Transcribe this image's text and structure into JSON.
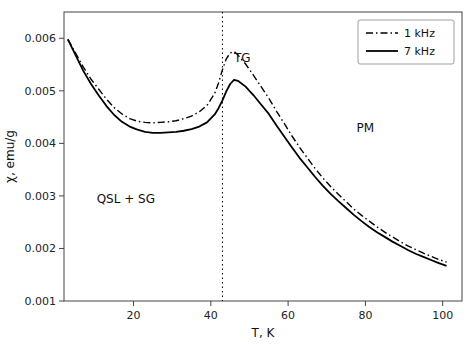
{
  "chart_data": {
    "type": "line",
    "x_label": "T, K",
    "y_label": "χ, emu/g",
    "xlim": [
      2,
      105
    ],
    "ylim": [
      0.001,
      0.0065
    ],
    "xticks": [
      20,
      40,
      60,
      80,
      100
    ],
    "yticks": [
      0.001,
      0.002,
      0.003,
      0.004,
      0.005,
      0.006
    ],
    "grid": false,
    "legend": "upper right",
    "x": [
      3,
      5,
      7,
      9,
      11,
      13,
      15,
      17,
      19,
      21,
      23,
      25,
      27,
      29,
      31,
      33,
      35,
      37,
      39,
      41,
      42,
      43,
      44,
      45,
      46,
      47,
      49,
      51,
      53,
      55,
      57,
      59,
      61,
      63,
      65,
      67,
      69,
      71,
      73,
      75,
      77,
      79,
      81,
      83,
      85,
      87,
      89,
      91,
      93,
      95,
      97,
      99,
      101
    ],
    "series": [
      {
        "name": "1 kHz",
        "color": "#000000",
        "line_style": "dashdot",
        "values": [
          0.00598,
          0.00572,
          0.00545,
          0.00522,
          0.00503,
          0.00484,
          0.00468,
          0.00456,
          0.00447,
          0.00442,
          0.0044,
          0.00439,
          0.0044,
          0.00441,
          0.00443,
          0.00447,
          0.00452,
          0.0046,
          0.00472,
          0.00495,
          0.00515,
          0.0054,
          0.00561,
          0.00572,
          0.00575,
          0.00568,
          0.00551,
          0.0053,
          0.00508,
          0.00486,
          0.00461,
          0.00438,
          0.00414,
          0.00392,
          0.00372,
          0.00352,
          0.00334,
          0.00318,
          0.00303,
          0.00289,
          0.00275,
          0.00263,
          0.00252,
          0.00241,
          0.00231,
          0.00222,
          0.00213,
          0.00205,
          0.00198,
          0.00191,
          0.00185,
          0.00179,
          0.00174
        ]
      },
      {
        "name": "7 kHz",
        "color": "#000000",
        "line_style": "solid",
        "values": [
          0.00598,
          0.00568,
          0.00538,
          0.00513,
          0.00491,
          0.00471,
          0.00454,
          0.00441,
          0.00432,
          0.00426,
          0.00422,
          0.0042,
          0.0042,
          0.00421,
          0.00422,
          0.00424,
          0.00427,
          0.00432,
          0.0044,
          0.00455,
          0.00467,
          0.00482,
          0.00499,
          0.00513,
          0.00521,
          0.00519,
          0.00508,
          0.00492,
          0.00474,
          0.00456,
          0.00434,
          0.00413,
          0.00392,
          0.00372,
          0.00354,
          0.00336,
          0.00319,
          0.00304,
          0.0029,
          0.00277,
          0.00264,
          0.00252,
          0.00241,
          0.00231,
          0.00222,
          0.00213,
          0.00205,
          0.00197,
          0.0019,
          0.00184,
          0.00178,
          0.00172,
          0.00167
        ]
      }
    ],
    "vlines": [
      43
    ],
    "annotations": [
      {
        "text": "TG",
        "x": 46,
        "y": 0.00555
      },
      {
        "text": "QSL + SG",
        "x": 18,
        "y": 0.00295
      },
      {
        "text": "PM",
        "x": 80,
        "y": 0.0043
      }
    ]
  }
}
